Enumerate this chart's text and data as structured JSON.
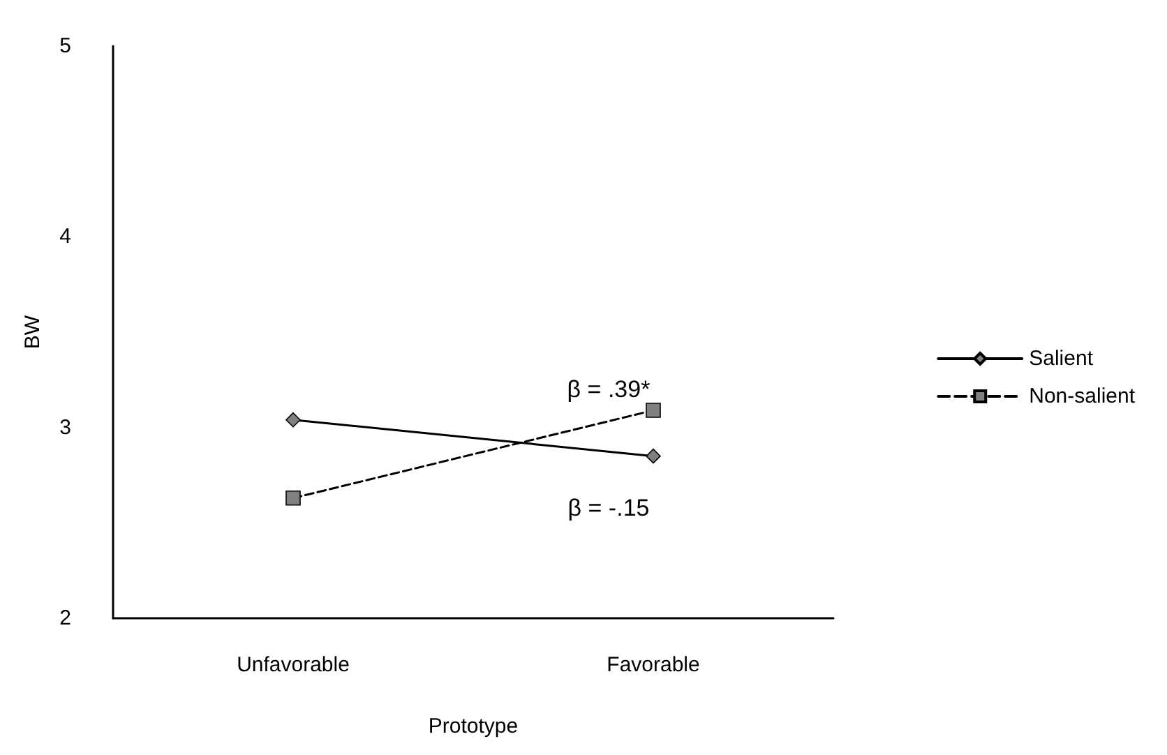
{
  "chart_data": {
    "type": "line",
    "xlabel": "Prototype",
    "ylabel": "BW",
    "categories": [
      "Unfavorable",
      "Favorable"
    ],
    "series": [
      {
        "name": "Salient",
        "color": "#000000",
        "values": [
          3.04,
          2.85
        ],
        "marker": "diamond",
        "line_style": "solid"
      },
      {
        "name": "Non-salient",
        "color": "#000000",
        "values": [
          2.63,
          3.09
        ],
        "marker": "square",
        "line_style": "dashed"
      }
    ],
    "ylim": [
      2,
      5
    ],
    "yticks": [
      2,
      3,
      4,
      5
    ],
    "grid": false,
    "legend": "right",
    "annotations": [
      "β = .39*",
      "β = -.15"
    ]
  }
}
